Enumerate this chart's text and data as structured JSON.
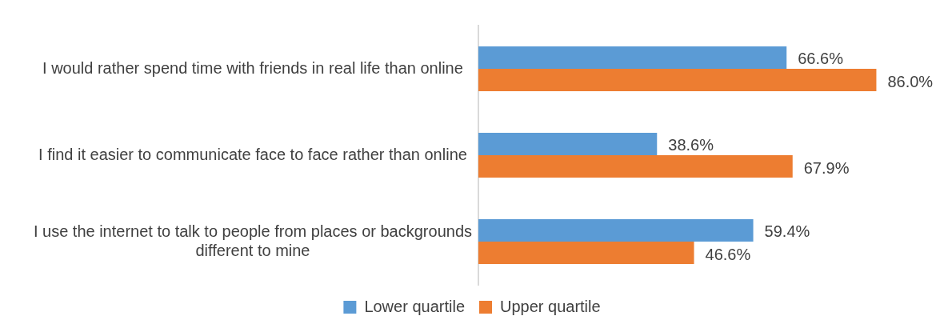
{
  "chart_data": {
    "type": "bar",
    "orientation": "horizontal",
    "categories": [
      "I would rather spend time with friends in real life than online",
      "I find it easier to communicate face to face rather than online",
      "I use the internet to talk to people from places or backgrounds different to mine"
    ],
    "series": [
      {
        "name": "Lower quartile",
        "color": "#5b9bd5",
        "values": [
          66.6,
          38.6,
          59.4
        ],
        "value_labels": [
          "66.6%",
          "38.6%",
          "59.4%"
        ]
      },
      {
        "name": "Upper quartile",
        "color": "#ed7d31",
        "values": [
          86.0,
          67.9,
          46.6
        ],
        "value_labels": [
          "86.0%",
          "67.9%",
          "46.6%"
        ]
      }
    ],
    "legend": "bottom",
    "grid": false
  }
}
